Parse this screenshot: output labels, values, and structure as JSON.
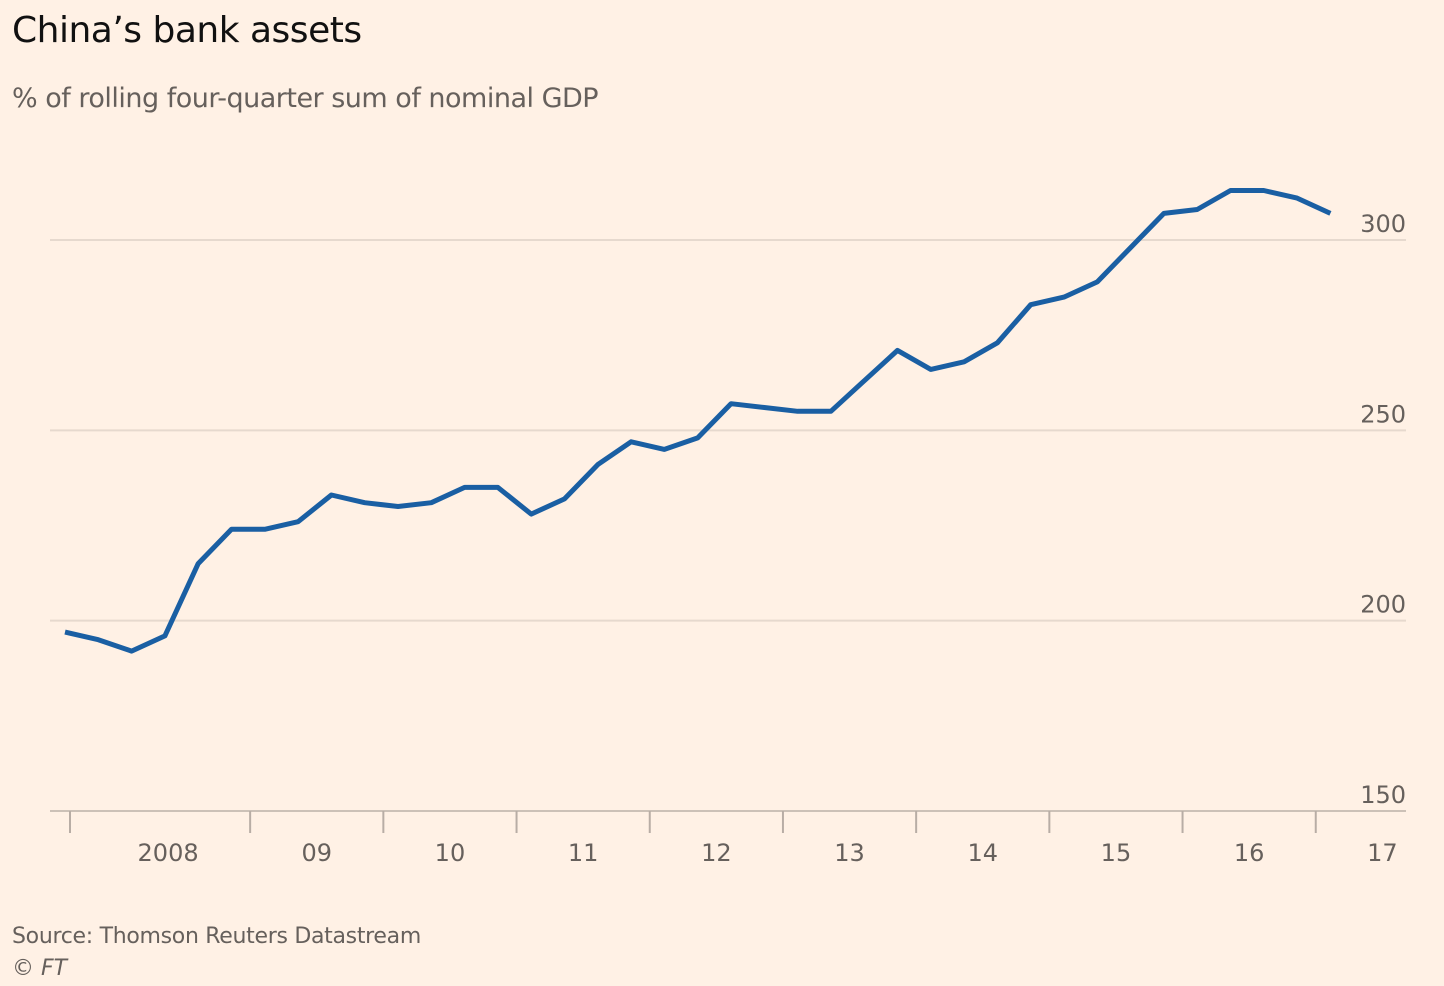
{
  "chart_data": {
    "type": "line",
    "title": "China’s bank assets",
    "subtitle": "% of rolling four-quarter sum of nominal GDP",
    "xlabel": "",
    "ylabel": "",
    "ylim": [
      150,
      300
    ],
    "yticks": [
      150,
      200,
      250,
      300
    ],
    "ytick_labels": [
      "150",
      "200",
      "250",
      "300"
    ],
    "y_axis_side": "right",
    "grid": true,
    "xtick_labels": [
      "2008",
      "09",
      "10",
      "11",
      "12",
      "13",
      "14",
      "15",
      "16",
      "17"
    ],
    "x_start": 2007.5,
    "x_step": 0.25,
    "series": [
      {
        "name": "Bank assets",
        "color": "#1a5fa3",
        "values": [
          197,
          195,
          192,
          196,
          215,
          224,
          224,
          226,
          233,
          231,
          230,
          231,
          235,
          235,
          228,
          232,
          241,
          247,
          245,
          248,
          257,
          256,
          255,
          255,
          263,
          271,
          266,
          268,
          273,
          283,
          285,
          289,
          298,
          307,
          308,
          313,
          313,
          311,
          307
        ]
      }
    ],
    "source": "Source: Thomson Reuters Datastream",
    "copyright_symbol": "©",
    "copyright_text": "FT"
  }
}
